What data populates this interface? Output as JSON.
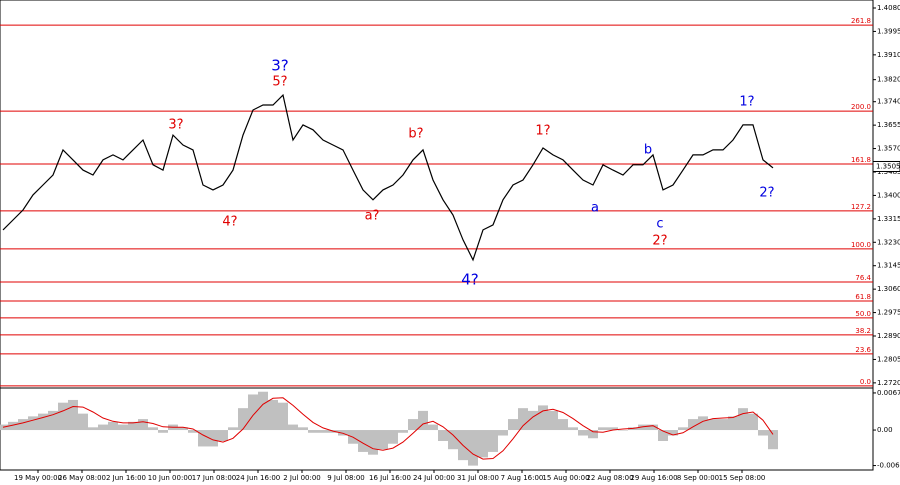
{
  "chart_data": [
    {
      "type": "line",
      "color": "#000000",
      "values": [
        1.3275,
        1.3311,
        1.3347,
        1.3402,
        1.3438,
        1.3474,
        1.3565,
        1.3529,
        1.3492,
        1.3474,
        1.3529,
        1.3547,
        1.3529,
        1.3565,
        1.3601,
        1.3511,
        1.3492,
        1.3619,
        1.3583,
        1.3565,
        1.3438,
        1.342,
        1.3438,
        1.3492,
        1.3619,
        1.371,
        1.3728,
        1.3728,
        1.3764,
        1.3601,
        1.3656,
        1.3638,
        1.3601,
        1.3583,
        1.3565,
        1.3492,
        1.342,
        1.3384,
        1.342,
        1.3438,
        1.3474,
        1.3529,
        1.3565,
        1.3456,
        1.3384,
        1.3329,
        1.3239,
        1.3166,
        1.3275,
        1.3293,
        1.3384,
        1.3438,
        1.3456,
        1.3511,
        1.3572,
        1.3547,
        1.3529,
        1.3492,
        1.3456,
        1.3438,
        1.3511,
        1.3492,
        1.3474,
        1.3511,
        1.3511,
        1.3547,
        1.342,
        1.3438,
        1.3492,
        1.3547,
        1.3547,
        1.3565,
        1.3565,
        1.3601,
        1.3656,
        1.3656,
        1.3529,
        1.35
      ],
      "ylim": [
        1.2705,
        1.4109
      ],
      "yticks": [
        {
          "value": 1.408,
          "label": "1.4080"
        },
        {
          "value": 1.3995,
          "label": "1.3995"
        },
        {
          "value": 1.391,
          "label": "1.3910"
        },
        {
          "value": 1.382,
          "label": "1.3820"
        },
        {
          "value": 1.374,
          "label": "1.3740"
        },
        {
          "value": 1.3655,
          "label": "1.3655"
        },
        {
          "value": 1.357,
          "label": "1.3570"
        },
        {
          "value": 1.3485,
          "label": "1.3485"
        },
        {
          "value": 1.34,
          "label": "1.3400"
        },
        {
          "value": 1.3315,
          "label": "1.3315"
        },
        {
          "value": 1.323,
          "label": "1.3230"
        },
        {
          "value": 1.3145,
          "label": "1.3145"
        },
        {
          "value": 1.306,
          "label": "1.3060"
        },
        {
          "value": 1.2975,
          "label": "1.2975"
        },
        {
          "value": 1.289,
          "label": "1.2890"
        },
        {
          "value": 1.2805,
          "label": "1.2805"
        },
        {
          "value": 1.272,
          "label": "1.2720"
        }
      ],
      "current_price": {
        "value": 1.3505,
        "label": "1.3505"
      },
      "levels": [
        {
          "label": "261.8",
          "price": 1.4018
        },
        {
          "label": "200.0",
          "price": 1.3706
        },
        {
          "label": "161.8",
          "price": 1.3514
        },
        {
          "label": "127.2",
          "price": 1.3344
        },
        {
          "label": "100.0",
          "price": 1.3206
        },
        {
          "label": "76.4",
          "price": 1.3086
        },
        {
          "label": "61.8",
          "price": 1.3017
        },
        {
          "label": "50.0",
          "price": 1.2956
        },
        {
          "label": "38.2",
          "price": 1.2894
        },
        {
          "label": "23.6",
          "price": 1.2825
        },
        {
          "label": "0.0",
          "price": 1.2709
        }
      ],
      "level_color": "#e00000",
      "annotations": [
        {
          "text": "3?",
          "color": "#e00000"
        },
        {
          "text": "4?",
          "color": "#e00000"
        },
        {
          "text": "3?",
          "color": "#0000e0"
        },
        {
          "text": "5?",
          "color": "#e00000"
        },
        {
          "text": "b?",
          "color": "#e00000"
        },
        {
          "text": "a?",
          "color": "#e00000"
        },
        {
          "text": "4?",
          "color": "#0000e0"
        },
        {
          "text": "1?",
          "color": "#e00000"
        },
        {
          "text": "a",
          "color": "#0000e0"
        },
        {
          "text": "b",
          "color": "#0000e0"
        },
        {
          "text": "c",
          "color": "#0000e0"
        },
        {
          "text": "2?",
          "color": "#e00000"
        },
        {
          "text": "1?",
          "color": "#0000e0"
        },
        {
          "text": "2?",
          "color": "#0000e0"
        }
      ],
      "time_labels": [
        "19 May 00:00",
        "26 May 08:00",
        "2 Jun 16:00",
        "10 Jun 00:00",
        "17 Jun 08:00",
        "24 Jun 16:00",
        "2 Jul 00:00",
        "9 Jul 08:00",
        "16 Jul 16:00",
        "24 Jul 00:00",
        "31 Jul 08:00",
        "7 Aug 16:00",
        "15 Aug 00:00",
        "22 Aug 08:00",
        "29 Aug 16:00",
        "8 Sep 00:00",
        "15 Sep 08:00"
      ]
    },
    {
      "type": "bar",
      "color": "#c0c0c0",
      "signal_color": "#e00000",
      "values": [
        0.001,
        0.0015,
        0.002,
        0.0025,
        0.003,
        0.0035,
        0.005,
        0.0055,
        0.003,
        0.0005,
        0.001,
        0.0015,
        0.001,
        0.0015,
        0.002,
        0.0005,
        -0.0005,
        0.001,
        0.0005,
        -0.0005,
        -0.003,
        -0.003,
        -0.002,
        0.0005,
        0.004,
        0.0065,
        0.007,
        0.0055,
        0.005,
        0.001,
        0.0005,
        -0.0005,
        -0.0005,
        -0.0005,
        -0.001,
        -0.0025,
        -0.004,
        -0.0045,
        -0.0035,
        -0.0025,
        -0.0005,
        0.002,
        0.0035,
        0.001,
        -0.002,
        -0.0035,
        -0.0055,
        -0.0065,
        -0.005,
        -0.004,
        -0.001,
        0.002,
        0.004,
        0.0035,
        0.0045,
        0.0035,
        0.002,
        0.0005,
        -0.001,
        -0.0015,
        0.0005,
        0.0005,
        0,
        0.0005,
        0.001,
        0.001,
        -0.002,
        -0.001,
        0.0005,
        0.002,
        0.0025,
        0.002,
        0.002,
        0.0025,
        0.004,
        0.003,
        -0.001,
        -0.0035
      ],
      "signal": [
        0.0005,
        0.0009,
        0.0013,
        0.0018,
        0.0023,
        0.0028,
        0.0035,
        0.0043,
        0.0042,
        0.0033,
        0.0022,
        0.0016,
        0.0013,
        0.0013,
        0.0015,
        0.0012,
        0.0006,
        0.0005,
        0.0005,
        0.0002,
        -0.0009,
        -0.0018,
        -0.0022,
        -0.0015,
        0.0002,
        0.0027,
        0.0047,
        0.0058,
        0.0059,
        0.0045,
        0.0029,
        0.0014,
        0.0004,
        -0.0002,
        -0.0006,
        -0.0013,
        -0.0024,
        -0.0034,
        -0.0037,
        -0.0033,
        -0.0022,
        -0.0006,
        0.0011,
        0.0016,
        0.0006,
        -0.0009,
        -0.0028,
        -0.0044,
        -0.0053,
        -0.0052,
        -0.0038,
        -0.0016,
        0.0008,
        0.0024,
        0.0035,
        0.0038,
        0.0032,
        0.0021,
        0.0008,
        -0.0003,
        -0.0004,
        0,
        0.0002,
        0.0003,
        0.0006,
        0.0008,
        -0.0002,
        -0.0009,
        -0.0005,
        0.0006,
        0.0016,
        0.0021,
        0.0022,
        0.0023,
        0.003,
        0.0033,
        0.0018,
        -0.0008
      ],
      "ylim": [
        -0.0073,
        0.0075
      ],
      "yticks": [
        0.00678,
        {
          "value": 0,
          "label": "0.00"
        },
        -0.00649
      ]
    }
  ]
}
